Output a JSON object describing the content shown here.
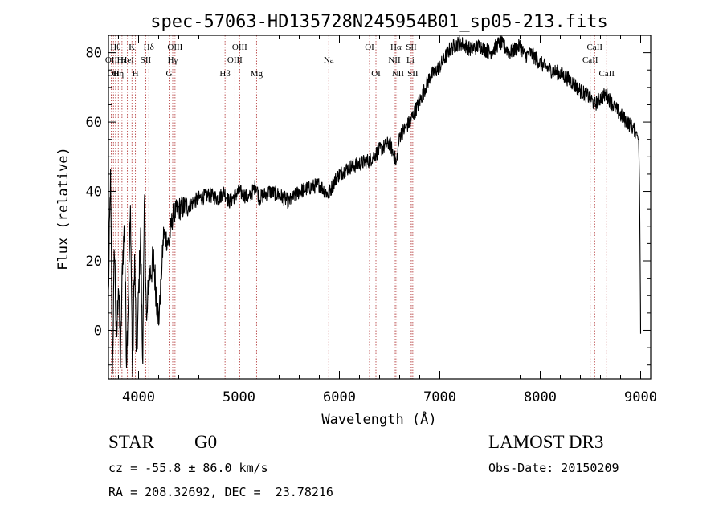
{
  "chart_data": {
    "type": "line",
    "title": "spec-57063-HD135728N245954B01_sp05-213.fits",
    "xlabel": "Wavelength (Å)",
    "ylabel": "Flux (relative)",
    "xlim": [
      3700,
      9100
    ],
    "ylim": [
      -14,
      85
    ],
    "xticks": [
      4000,
      5000,
      6000,
      7000,
      8000,
      9000
    ],
    "yticks": [
      0,
      20,
      40,
      60,
      80
    ],
    "grid": false,
    "series": [
      {
        "name": "flux",
        "color": "#000000",
        "x": [
          3700,
          3720,
          3740,
          3760,
          3780,
          3800,
          3820,
          3840,
          3860,
          3880,
          3900,
          3920,
          3940,
          3960,
          3980,
          4000,
          4020,
          4040,
          4060,
          4080,
          4100,
          4150,
          4200,
          4250,
          4300,
          4340,
          4400,
          4500,
          4600,
          4700,
          4800,
          4850,
          4900,
          5000,
          5100,
          5170,
          5200,
          5300,
          5400,
          5500,
          5600,
          5700,
          5800,
          5890,
          5950,
          6000,
          6100,
          6200,
          6300,
          6400,
          6500,
          6560,
          6563,
          6600,
          6700,
          6800,
          6900,
          7000,
          7100,
          7200,
          7300,
          7400,
          7500,
          7600,
          7700,
          7800,
          7850,
          7900,
          8000,
          8100,
          8200,
          8300,
          8400,
          8498,
          8542,
          8600,
          8662,
          8700,
          8800,
          8900,
          8960,
          8980,
          8990,
          9000
        ],
        "y": [
          10,
          45,
          -12,
          25,
          -5,
          15,
          -10,
          20,
          30,
          -8,
          12,
          35,
          -13,
          22,
          -10,
          10,
          28,
          -9,
          38,
          0,
          15,
          20,
          2,
          28,
          25,
          33,
          35,
          36,
          38,
          39,
          38,
          40,
          37,
          40,
          38,
          42,
          38,
          40,
          39,
          37,
          40,
          41,
          42,
          39,
          43,
          45,
          47,
          48,
          49,
          52,
          54,
          49,
          47,
          56,
          60,
          66,
          73,
          76,
          81,
          83,
          81,
          82,
          80,
          83,
          80,
          82,
          79,
          80,
          77,
          75,
          74,
          72,
          69,
          67,
          65,
          67,
          68,
          66,
          62,
          59,
          57,
          55,
          40,
          -1
        ]
      }
    ],
    "lines": [
      {
        "wl": 3728,
        "label": "OII",
        "row": 2
      },
      {
        "wl": 3750,
        "label": "OII",
        "row": 3
      },
      {
        "wl": 3771,
        "label": "Hθ",
        "row": 1
      },
      {
        "wl": 3798,
        "label": "Hη",
        "row": 3
      },
      {
        "wl": 3835,
        "label": "Hε",
        "row": 2
      },
      {
        "wl": 3889,
        "label": "HeI",
        "row": 2
      },
      {
        "wl": 3934,
        "label": "K",
        "row": 1
      },
      {
        "wl": 3969,
        "label": "H",
        "row": 3
      },
      {
        "wl": 4072,
        "label": "SII",
        "row": 2
      },
      {
        "wl": 4102,
        "label": "Hδ",
        "row": 1
      },
      {
        "wl": 4304,
        "label": "G",
        "row": 3
      },
      {
        "wl": 4340,
        "label": "Hγ",
        "row": 2
      },
      {
        "wl": 4363,
        "label": "OIII",
        "row": 1
      },
      {
        "wl": 4861,
        "label": "Hβ",
        "row": 3
      },
      {
        "wl": 4959,
        "label": "OIII",
        "row": 2
      },
      {
        "wl": 5007,
        "label": "OIII",
        "row": 1
      },
      {
        "wl": 5175,
        "label": "Mg",
        "row": 3
      },
      {
        "wl": 5894,
        "label": "Na",
        "row": 2
      },
      {
        "wl": 6300,
        "label": "OI",
        "row": 1
      },
      {
        "wl": 6364,
        "label": "OI",
        "row": 3
      },
      {
        "wl": 6548,
        "label": "NII",
        "row": 2
      },
      {
        "wl": 6563,
        "label": "Hα",
        "row": 1
      },
      {
        "wl": 6583,
        "label": "NII",
        "row": 3
      },
      {
        "wl": 6707,
        "label": "Li",
        "row": 2
      },
      {
        "wl": 6716,
        "label": "SII",
        "row": 1
      },
      {
        "wl": 6731,
        "label": "SII",
        "row": 3
      },
      {
        "wl": 8498,
        "label": "CaII",
        "row": 2
      },
      {
        "wl": 8542,
        "label": "CaII",
        "row": 1
      },
      {
        "wl": 8662,
        "label": "CaII",
        "row": 3
      }
    ]
  },
  "info": {
    "object_class": "STAR",
    "subclass": "G0",
    "survey": "LAMOST DR3",
    "redshift_line": "cz = -55.8 ± 86.0 km/s",
    "obs_date_line": "Obs-Date: 20150209",
    "coords_line": "RA = 208.32692, DEC =  23.78216"
  }
}
